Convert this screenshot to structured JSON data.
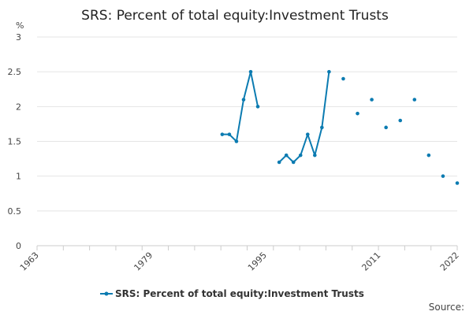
{
  "title": "SRS: Percent of total equity:Investment Trusts",
  "source_label": "Source:",
  "chart_data": {
    "type": "line",
    "title": "SRS: Percent of total equity:Investment Trusts",
    "ylabel": "%",
    "xlim": [
      1963,
      2022
    ],
    "ylim": [
      0,
      3
    ],
    "y_ticks": [
      0,
      0.5,
      1,
      1.5,
      2,
      2.5,
      3
    ],
    "y_tick_labels": [
      "0",
      "0.5",
      "1",
      "1.5",
      "2",
      "2.5",
      "3"
    ],
    "x_ticks": [
      1963,
      1979,
      1995,
      2011,
      2022
    ],
    "x_tick_labels": [
      "1963",
      "1979",
      "1995",
      "2011",
      "2022"
    ],
    "grid": true,
    "legend_position": "bottom",
    "color": "#0b7bb1",
    "series": [
      {
        "name": "SRS: Percent of total equity:Investment Trusts",
        "points": [
          [
            1989,
            1.6
          ],
          [
            1990,
            1.6
          ],
          [
            1991,
            1.5
          ],
          [
            1992,
            2.1
          ],
          [
            1993,
            2.5
          ],
          [
            1994,
            2.0
          ],
          [
            1995,
            null
          ],
          [
            1996,
            null
          ],
          [
            1997,
            1.2
          ],
          [
            1998,
            1.3
          ],
          [
            1999,
            1.2
          ],
          [
            2000,
            1.3
          ],
          [
            2001,
            1.6
          ],
          [
            2002,
            1.3
          ],
          [
            2003,
            1.7
          ],
          [
            2004,
            2.5
          ],
          [
            2005,
            null
          ],
          [
            2006,
            2.4
          ],
          [
            2007,
            null
          ],
          [
            2008,
            1.9
          ],
          [
            2009,
            null
          ],
          [
            2010,
            2.1
          ],
          [
            2011,
            null
          ],
          [
            2012,
            1.7
          ],
          [
            2013,
            null
          ],
          [
            2014,
            1.8
          ],
          [
            2015,
            null
          ],
          [
            2016,
            2.1
          ],
          [
            2017,
            null
          ],
          [
            2018,
            1.3
          ],
          [
            2019,
            null
          ],
          [
            2020,
            1.0
          ],
          [
            2021,
            null
          ],
          [
            2022,
            0.9
          ]
        ]
      }
    ]
  }
}
